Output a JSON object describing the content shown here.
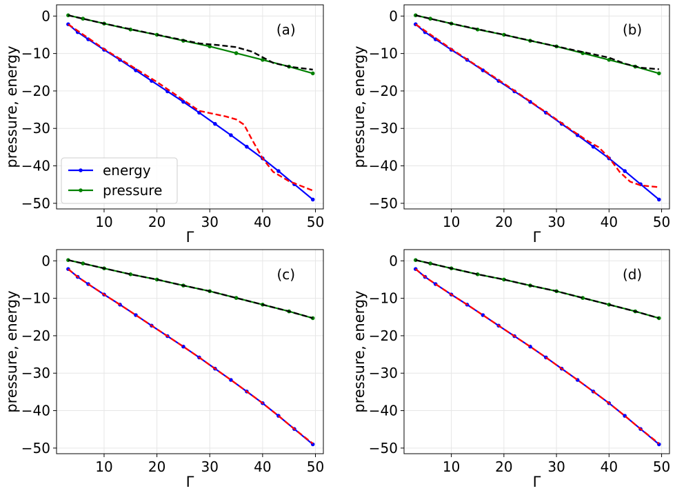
{
  "colors": {
    "energy": "#0000ff",
    "pressure": "#008000",
    "energy_fit": "#ff0000",
    "pressure_fit": "#000000",
    "grid": "#e6e6e6",
    "frame": "#000000"
  },
  "chart_data": [
    {
      "type": "line",
      "panel_label": "(a)",
      "xlabel": "Γ",
      "ylabel": "pressure, energy",
      "xlim": [
        1,
        51.5
      ],
      "ylim": [
        -51.5,
        3
      ],
      "grid": true,
      "xticks": [
        10,
        20,
        30,
        40,
        50
      ],
      "xtick_labels": [
        "10",
        "20",
        "30",
        "40",
        "50"
      ],
      "yticks": [
        0,
        -10,
        -20,
        -30,
        -40,
        -50
      ],
      "ytick_labels": [
        "0",
        "−10",
        "−20",
        "−30",
        "−40",
        "−50"
      ],
      "legend": {
        "position": "lower-left",
        "entries": [
          "energy",
          "pressure"
        ]
      },
      "series": [
        {
          "name": "energy",
          "style": "line-markers",
          "x": [
            3.2,
            5,
            7,
            10,
            13,
            16,
            19,
            22,
            25,
            28,
            31,
            34,
            37,
            40,
            43,
            46,
            49.5
          ],
          "y": [
            -2.2,
            -4.3,
            -6.2,
            -9.0,
            -11.7,
            -14.5,
            -17.3,
            -20.1,
            -22.9,
            -25.8,
            -28.8,
            -31.8,
            -34.9,
            -38.0,
            -41.4,
            -44.9,
            -49.0
          ]
        },
        {
          "name": "pressure",
          "style": "line-markers",
          "x": [
            3.2,
            6,
            10,
            15,
            20,
            25,
            30,
            35,
            40,
            45,
            49.5
          ],
          "y": [
            0.2,
            -0.7,
            -2.0,
            -3.6,
            -5.0,
            -6.6,
            -8.1,
            -9.9,
            -11.7,
            -13.5,
            -15.3
          ]
        },
        {
          "name": "energy fit",
          "style": "dashed",
          "x": [
            3.2,
            10,
            15,
            20,
            25,
            28,
            30,
            33,
            35,
            36.5,
            38,
            40,
            42,
            45,
            49.5
          ],
          "y": [
            -2.2,
            -8.8,
            -13.2,
            -17.6,
            -22.4,
            -25.3,
            -25.9,
            -26.8,
            -27.6,
            -29.0,
            -33.0,
            -38.0,
            -41.6,
            -44.1,
            -46.6
          ]
        },
        {
          "name": "pressure fit",
          "style": "dashed",
          "x": [
            3.2,
            10,
            20,
            28,
            32,
            35,
            38,
            40,
            42,
            45,
            49.5
          ],
          "y": [
            0.2,
            -2.0,
            -5.0,
            -7.3,
            -7.8,
            -8.3,
            -9.5,
            -11.0,
            -12.5,
            -13.5,
            -14.3
          ]
        }
      ]
    },
    {
      "type": "line",
      "panel_label": "(b)",
      "xlabel": "Γ",
      "ylabel": "pressure, energy",
      "xlim": [
        1,
        51.5
      ],
      "ylim": [
        -51.5,
        3
      ],
      "grid": true,
      "xticks": [
        10,
        20,
        30,
        40,
        50
      ],
      "xtick_labels": [
        "10",
        "20",
        "30",
        "40",
        "50"
      ],
      "yticks": [
        0,
        -10,
        -20,
        -30,
        -40,
        -50
      ],
      "ytick_labels": [
        "0",
        "−10",
        "−20",
        "−30",
        "−40",
        "−50"
      ],
      "series": [
        {
          "name": "energy",
          "style": "line-markers",
          "x": [
            3.2,
            5,
            7,
            10,
            13,
            16,
            19,
            22,
            25,
            28,
            31,
            34,
            37,
            40,
            43,
            46,
            49.5
          ],
          "y": [
            -2.2,
            -4.3,
            -6.2,
            -9.0,
            -11.7,
            -14.5,
            -17.3,
            -20.1,
            -22.9,
            -25.8,
            -28.8,
            -31.8,
            -34.9,
            -38.0,
            -41.4,
            -44.9,
            -49.0
          ]
        },
        {
          "name": "pressure",
          "style": "line-markers",
          "x": [
            3.2,
            6,
            10,
            15,
            20,
            25,
            30,
            35,
            40,
            45,
            49.5
          ],
          "y": [
            0.2,
            -0.7,
            -2.0,
            -3.6,
            -5.0,
            -6.6,
            -8.1,
            -9.9,
            -11.7,
            -13.5,
            -15.3
          ]
        },
        {
          "name": "energy fit",
          "style": "dashed",
          "x": [
            3.2,
            10,
            15,
            20,
            25,
            30,
            33,
            36,
            38,
            40,
            42,
            44,
            46,
            49.5
          ],
          "y": [
            -2.2,
            -8.8,
            -13.4,
            -18.0,
            -22.8,
            -27.6,
            -30.6,
            -33.4,
            -35.0,
            -37.8,
            -41.6,
            -44.2,
            -45.2,
            -45.7
          ]
        },
        {
          "name": "pressure fit",
          "style": "dashed",
          "x": [
            3.2,
            10,
            20,
            30,
            35,
            40,
            43,
            46,
            49.5
          ],
          "y": [
            0.2,
            -2.0,
            -5.0,
            -8.1,
            -9.6,
            -11.1,
            -12.7,
            -13.8,
            -14.2
          ]
        }
      ]
    },
    {
      "type": "line",
      "panel_label": "(c)",
      "xlabel": "Γ",
      "ylabel": "pressure, energy",
      "xlim": [
        1,
        51.5
      ],
      "ylim": [
        -51.5,
        3
      ],
      "grid": true,
      "xticks": [
        10,
        20,
        30,
        40,
        50
      ],
      "xtick_labels": [
        "10",
        "20",
        "30",
        "40",
        "50"
      ],
      "yticks": [
        0,
        -10,
        -20,
        -30,
        -40,
        -50
      ],
      "ytick_labels": [
        "0",
        "−10",
        "−20",
        "−30",
        "−40",
        "−50"
      ],
      "series": [
        {
          "name": "energy",
          "style": "line-markers",
          "x": [
            3.2,
            5,
            7,
            10,
            13,
            16,
            19,
            22,
            25,
            28,
            31,
            34,
            37,
            40,
            43,
            46,
            49.5
          ],
          "y": [
            -2.2,
            -4.3,
            -6.2,
            -9.0,
            -11.7,
            -14.5,
            -17.3,
            -20.1,
            -22.9,
            -25.8,
            -28.8,
            -31.8,
            -34.9,
            -38.0,
            -41.4,
            -44.9,
            -49.0
          ]
        },
        {
          "name": "pressure",
          "style": "line-markers",
          "x": [
            3.2,
            6,
            10,
            15,
            20,
            25,
            30,
            35,
            40,
            45,
            49.5
          ],
          "y": [
            0.2,
            -0.7,
            -2.0,
            -3.6,
            -5.0,
            -6.6,
            -8.1,
            -9.9,
            -11.7,
            -13.5,
            -15.3
          ]
        },
        {
          "name": "energy fit",
          "style": "dashed",
          "x": [
            3.2,
            5,
            7,
            10,
            13,
            16,
            19,
            22,
            25,
            28,
            31,
            34,
            37,
            40,
            43,
            46,
            49.5
          ],
          "y": [
            -2.2,
            -4.3,
            -6.2,
            -9.0,
            -11.7,
            -14.5,
            -17.3,
            -20.1,
            -22.9,
            -25.8,
            -28.8,
            -31.8,
            -34.9,
            -38.0,
            -41.4,
            -44.9,
            -48.8
          ]
        },
        {
          "name": "pressure fit",
          "style": "dashed",
          "x": [
            3.2,
            6,
            10,
            15,
            20,
            25,
            30,
            35,
            40,
            45,
            49.5
          ],
          "y": [
            0.2,
            -0.7,
            -2.0,
            -3.6,
            -5.0,
            -6.6,
            -8.1,
            -9.9,
            -11.7,
            -13.5,
            -15.3
          ]
        }
      ]
    },
    {
      "type": "line",
      "panel_label": "(d)",
      "xlabel": "Γ",
      "ylabel": "pressure, energy",
      "xlim": [
        1,
        51.5
      ],
      "ylim": [
        -51.5,
        3
      ],
      "grid": true,
      "xticks": [
        10,
        20,
        30,
        40,
        50
      ],
      "xtick_labels": [
        "10",
        "20",
        "30",
        "40",
        "50"
      ],
      "yticks": [
        0,
        -10,
        -20,
        -30,
        -40,
        -50
      ],
      "ytick_labels": [
        "0",
        "−10",
        "−20",
        "−30",
        "−40",
        "−50"
      ],
      "series": [
        {
          "name": "energy",
          "style": "line-markers",
          "x": [
            3.2,
            5,
            7,
            10,
            13,
            16,
            19,
            22,
            25,
            28,
            31,
            34,
            37,
            40,
            43,
            46,
            49.5
          ],
          "y": [
            -2.2,
            -4.3,
            -6.2,
            -9.0,
            -11.7,
            -14.5,
            -17.3,
            -20.1,
            -22.9,
            -25.8,
            -28.8,
            -31.8,
            -34.9,
            -38.0,
            -41.4,
            -44.9,
            -49.0
          ]
        },
        {
          "name": "pressure",
          "style": "line-markers",
          "x": [
            3.2,
            6,
            10,
            15,
            20,
            25,
            30,
            35,
            40,
            45,
            49.5
          ],
          "y": [
            0.2,
            -0.7,
            -2.0,
            -3.6,
            -5.0,
            -6.6,
            -8.1,
            -9.9,
            -11.7,
            -13.5,
            -15.3
          ]
        },
        {
          "name": "energy fit",
          "style": "dashed",
          "x": [
            3.2,
            5,
            7,
            10,
            13,
            16,
            19,
            22,
            25,
            28,
            31,
            34,
            37,
            40,
            43,
            46,
            49.5
          ],
          "y": [
            -2.2,
            -4.3,
            -6.2,
            -9.0,
            -11.7,
            -14.5,
            -17.3,
            -20.1,
            -22.9,
            -25.8,
            -28.8,
            -31.8,
            -34.9,
            -38.0,
            -41.4,
            -44.9,
            -48.8
          ]
        },
        {
          "name": "pressure fit",
          "style": "dashed",
          "x": [
            3.2,
            6,
            10,
            15,
            20,
            25,
            30,
            35,
            40,
            45,
            49.5
          ],
          "y": [
            0.2,
            -0.7,
            -2.0,
            -3.6,
            -5.0,
            -6.6,
            -8.1,
            -9.9,
            -11.7,
            -13.5,
            -15.3
          ]
        }
      ]
    }
  ]
}
